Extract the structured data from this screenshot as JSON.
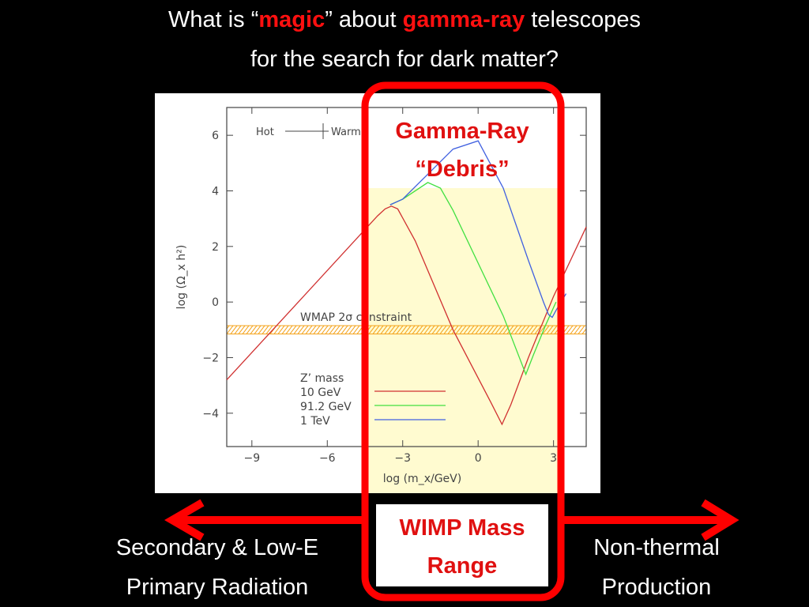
{
  "slide": {
    "title": {
      "part1": "What is “",
      "magic": "magic",
      "part2": "” about ",
      "gamma": "gamma-ray",
      "part3": " telescopes",
      "line2": "for the search for dark matter?"
    },
    "left_caption": [
      "Secondary & Low-E",
      "Primary Radiation"
    ],
    "right_caption": [
      "Non-thermal",
      "Production"
    ],
    "box_top_label": [
      "Gamma-Ray",
      "“Debris”"
    ],
    "box_bottom_label": [
      "WIMP Mass",
      "Range"
    ],
    "colors": {
      "highlight": "#ff1010",
      "arrow": "#ff0000",
      "wimp_band": "#fffbd0",
      "hatch": "#f4a21a"
    }
  },
  "chart_data": {
    "type": "line",
    "xlabel": "log (m_x/GeV)",
    "ylabel": "log (Ω_x h²)",
    "xlim": [
      -10,
      4.3
    ],
    "ylim": [
      -5.2,
      7
    ],
    "xticks": [
      "−9",
      "−6",
      "−3",
      "0",
      "3"
    ],
    "yticks": [
      "−4",
      "−2",
      "0",
      "2",
      "4",
      "6"
    ],
    "annotations": {
      "hot": "Hot",
      "warm": "Warm",
      "wmap": "WMAP 2σ constraint",
      "legend_title": "Z’ mass"
    },
    "wmap_band": [
      -1.15,
      -0.85
    ],
    "series": [
      {
        "name": "10 GeV",
        "color": "#d03030",
        "x": [
          -10,
          -4,
          -3.7,
          -3.45,
          -3.2,
          -2.5,
          -1.0,
          0.5,
          0.95,
          1.3,
          2.0,
          3.0,
          4.3
        ],
        "y": [
          -2.8,
          3.1,
          3.35,
          3.45,
          3.35,
          2.2,
          -1.0,
          -3.6,
          -4.4,
          -3.7,
          -2.0,
          0.2,
          2.7
        ]
      },
      {
        "name": "91.2 GeV",
        "color": "#40e040",
        "x": [
          -3.5,
          -3.0,
          -2.0,
          -1.5,
          -1.0,
          0.0,
          1.0,
          1.9,
          2.2,
          2.7,
          3.1
        ],
        "y": [
          3.5,
          3.7,
          4.3,
          4.1,
          3.3,
          1.4,
          -0.5,
          -2.6,
          -1.9,
          -0.8,
          0.0
        ]
      },
      {
        "name": "1 TeV",
        "color": "#4060e0",
        "x": [
          -3.5,
          -3.0,
          -2.0,
          -1.0,
          0.0,
          1.0,
          2.0,
          2.6,
          2.8,
          2.95,
          3.1,
          3.5
        ],
        "y": [
          3.5,
          3.7,
          4.6,
          5.5,
          5.8,
          4.1,
          1.5,
          0.0,
          -0.45,
          -0.55,
          -0.3,
          0.3
        ]
      }
    ]
  }
}
